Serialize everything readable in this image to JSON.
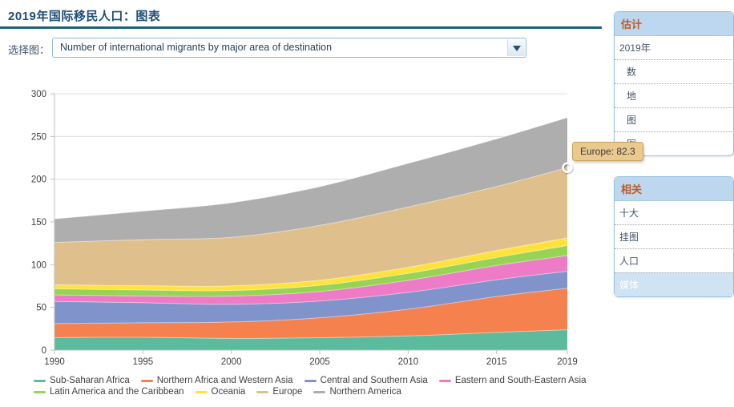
{
  "page": {
    "title": "2019年国际移民人口：图表"
  },
  "selector": {
    "label": "选择图：",
    "value": "Number of international migrants by major area of destination",
    "dropdown_icon": "chevron-down-triangle"
  },
  "tooltip": {
    "series": "Europe",
    "value": 82.3,
    "text": "Europe: 82.3"
  },
  "sidebar": {
    "estimates": {
      "header": "估计",
      "items": [
        {
          "label": "2019年",
          "indent": false
        },
        {
          "label": "数",
          "indent": true
        },
        {
          "label": "地",
          "indent": true
        },
        {
          "label": "图",
          "indent": true
        },
        {
          "label": "图",
          "indent": true
        }
      ]
    },
    "related": {
      "header": "相关",
      "items": [
        {
          "label": "十大"
        },
        {
          "label": "挂图"
        },
        {
          "label": "人口"
        },
        {
          "label": "媒体",
          "highlighted": true
        }
      ]
    }
  },
  "theme": {
    "title_color": "#1F4E79",
    "rule_color": "#1D6078",
    "panel_header_bg": "#BDD7EE",
    "panel_header_text": "#C05A21",
    "select_border": "#8DB8DC",
    "tooltip_bg": "#EAC98F",
    "axis_line": "#BFBFBF",
    "gridline": "#DCDCDC",
    "axis_text": "#404040"
  },
  "chart_data": {
    "type": "area",
    "stacked": true,
    "x": [
      1990,
      1995,
      2000,
      2005,
      2010,
      2015,
      2019
    ],
    "x_tick_labels": [
      "1990",
      "1995",
      "2000",
      "2005",
      "2010",
      "2015",
      "2019"
    ],
    "ylim": [
      0,
      300
    ],
    "y_ticks": [
      0,
      50,
      100,
      150,
      200,
      250,
      300
    ],
    "grid": "horizontal",
    "legend_position": "bottom",
    "series": [
      {
        "name": "Sub-Saharan Africa",
        "color": "#5CBB9D",
        "values": [
          14.7,
          15.0,
          13.7,
          14.5,
          16.6,
          20.7,
          23.8
        ]
      },
      {
        "name": "Northern Africa and Western Asia",
        "color": "#F5814E",
        "values": [
          16.4,
          17.0,
          19.2,
          23.3,
          31.3,
          42.0,
          48.6
        ]
      },
      {
        "name": "Central and Southern Asia",
        "color": "#8093CB",
        "values": [
          25.9,
          23.4,
          20.7,
          19.6,
          19.6,
          19.6,
          19.8
        ]
      },
      {
        "name": "Eastern and South-Eastern Asia",
        "color": "#EE7BC6",
        "values": [
          7.6,
          7.9,
          9.6,
          11.2,
          14.1,
          16.7,
          18.4
        ]
      },
      {
        "name": "Latin America and the Caribbean",
        "color": "#97D455",
        "values": [
          7.1,
          7.0,
          6.5,
          7.2,
          8.2,
          9.4,
          11.7
        ]
      },
      {
        "name": "Oceania",
        "color": "#FFE23A",
        "values": [
          4.7,
          5.0,
          5.4,
          6.0,
          7.1,
          8.1,
          8.9
        ]
      },
      {
        "name": "Europe",
        "color": "#DFC08D",
        "values": [
          49.6,
          54.0,
          56.9,
          64.1,
          70.6,
          75.0,
          82.3
        ]
      },
      {
        "name": "Northern America",
        "color": "#AEAEAE",
        "values": [
          27.6,
          33.3,
          40.4,
          45.4,
          51.0,
          55.7,
          58.6
        ]
      }
    ],
    "highlight_point": {
      "series": "Europe",
      "x": 2019,
      "value": 82.3,
      "stacked_y": 213.5
    }
  }
}
